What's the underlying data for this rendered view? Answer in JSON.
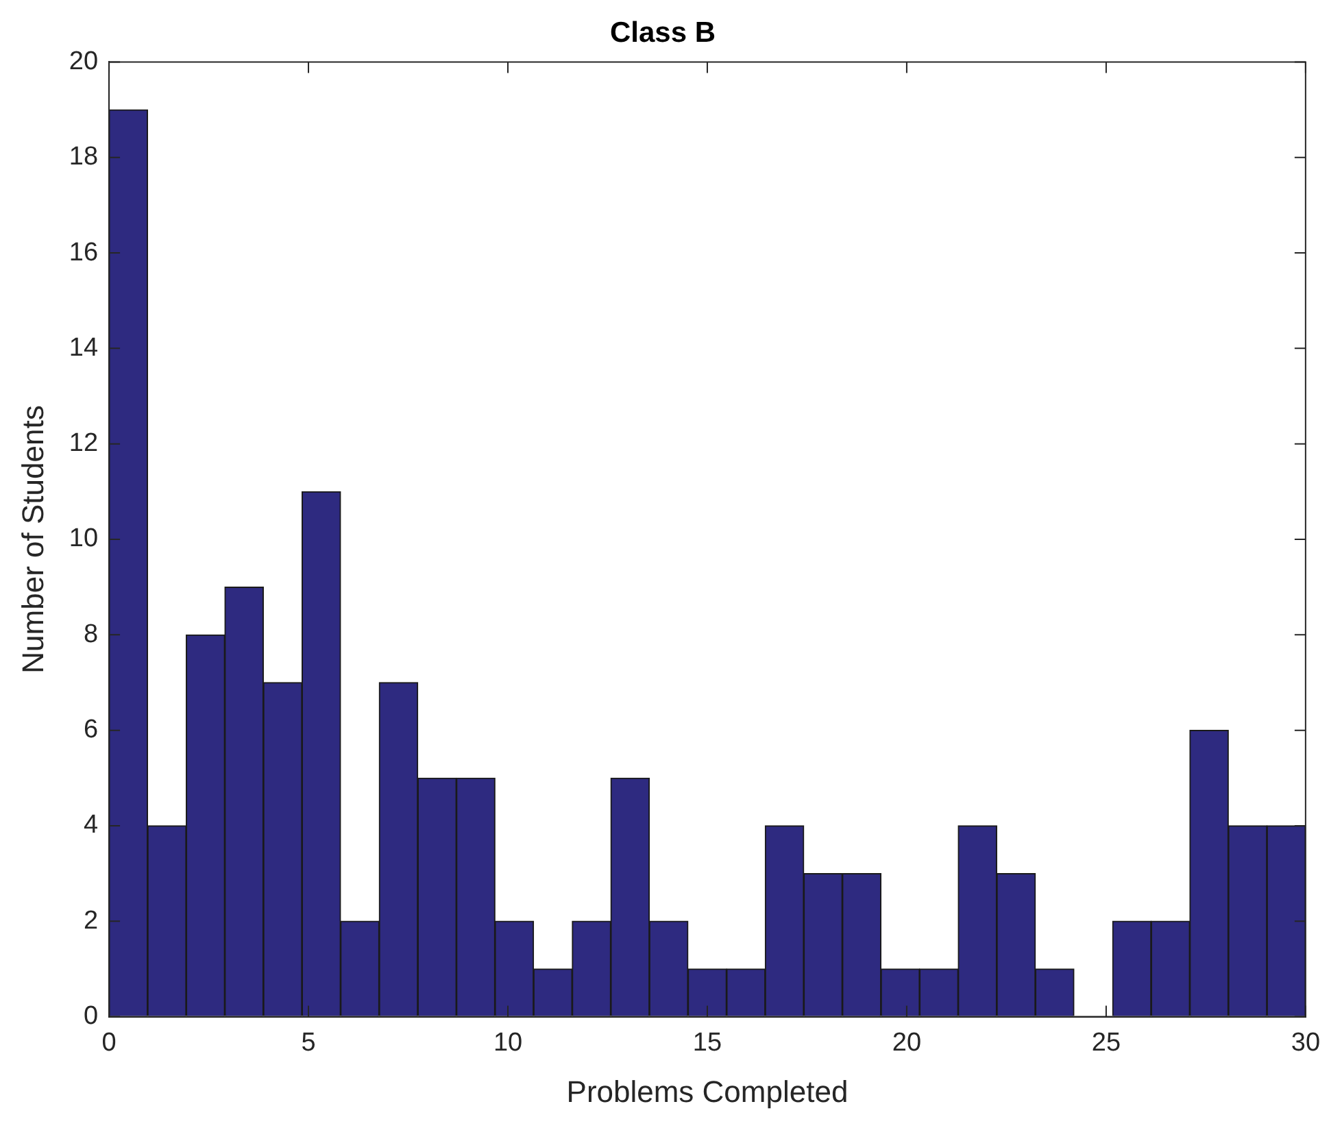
{
  "chart_data": {
    "type": "histogram",
    "title": "Class B",
    "xlabel": "Problems Completed",
    "ylabel": "Number of Students",
    "bins": [
      0,
      0.968,
      1.935,
      2.903,
      3.871,
      4.839,
      5.806,
      6.774,
      7.742,
      8.71,
      9.677,
      10.645,
      11.613,
      12.581,
      13.548,
      14.516,
      15.484,
      16.452,
      17.419,
      18.387,
      19.355,
      20.323,
      21.29,
      22.258,
      23.226,
      24.194,
      25.161,
      26.129,
      27.097,
      28.065,
      29.032,
      30
    ],
    "values": [
      19,
      4,
      8,
      9,
      7,
      11,
      2,
      7,
      5,
      5,
      2,
      1,
      2,
      5,
      2,
      1,
      1,
      4,
      3,
      3,
      1,
      1,
      4,
      3,
      1,
      0,
      2,
      2,
      6,
      4,
      4
    ],
    "color": "#2e2a80",
    "xlim": [
      0,
      30
    ],
    "xticks": [
      0,
      5,
      10,
      15,
      20,
      25,
      30
    ],
    "ylim": [
      0,
      20
    ],
    "yticks": [
      0,
      2,
      4,
      6,
      8,
      10,
      12,
      14,
      16,
      18,
      20
    ],
    "grid": false,
    "legend": false
  }
}
